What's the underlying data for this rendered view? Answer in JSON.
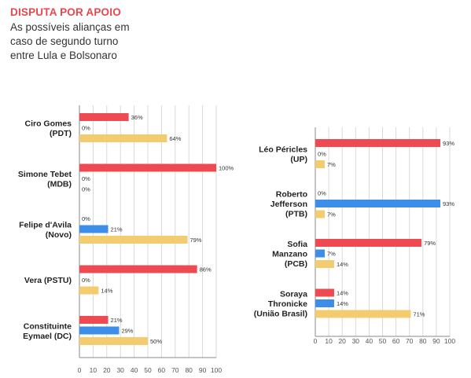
{
  "heading": {
    "title": "DISPUTA POR APOIO",
    "subtitle": "As possíveis alianças em caso de segundo turno entre Lula e Bolsonaro"
  },
  "colors": {
    "bar1": "#ef4a52",
    "bar2": "#3d8ee9",
    "bar3": "#f3cc6f",
    "grid": "#d9d9d9",
    "axis": "#888888"
  },
  "chart_data": [
    {
      "type": "bar",
      "orientation": "horizontal",
      "xlim": [
        0,
        100
      ],
      "xticks": [
        0,
        10,
        20,
        30,
        40,
        50,
        60,
        70,
        80,
        90,
        100
      ],
      "grid": true,
      "categories": [
        {
          "label": [
            "Ciro Gomes",
            "(PDT)"
          ],
          "values": [
            36,
            0,
            64
          ]
        },
        {
          "label": [
            "Simone Tebet",
            "(MDB)"
          ],
          "values": [
            100,
            0,
            0
          ]
        },
        {
          "label": [
            "Felipe d'Avila",
            "(Novo)"
          ],
          "values": [
            0,
            21,
            79
          ]
        },
        {
          "label": [
            "Vera (PSTU)"
          ],
          "values": [
            86,
            0,
            14
          ]
        },
        {
          "label": [
            "Constituinte",
            "Eymael (DC)"
          ],
          "values": [
            21,
            29,
            50
          ]
        }
      ]
    },
    {
      "type": "bar",
      "orientation": "horizontal",
      "xlim": [
        0,
        100
      ],
      "xticks": [
        0,
        10,
        20,
        30,
        40,
        50,
        60,
        70,
        80,
        90,
        100
      ],
      "grid": true,
      "categories": [
        {
          "label": [
            "Léo Péricles",
            "(UP)"
          ],
          "values": [
            93,
            0,
            7
          ]
        },
        {
          "label": [
            "Roberto",
            "Jefferson",
            "(PTB)"
          ],
          "values": [
            0,
            93,
            7
          ]
        },
        {
          "label": [
            "Sofia",
            "Manzano",
            "(PCB)"
          ],
          "values": [
            79,
            7,
            14
          ]
        },
        {
          "label": [
            "Soraya",
            "Thronicke",
            "(União Brasil)"
          ],
          "values": [
            14,
            14,
            71
          ]
        }
      ]
    }
  ]
}
